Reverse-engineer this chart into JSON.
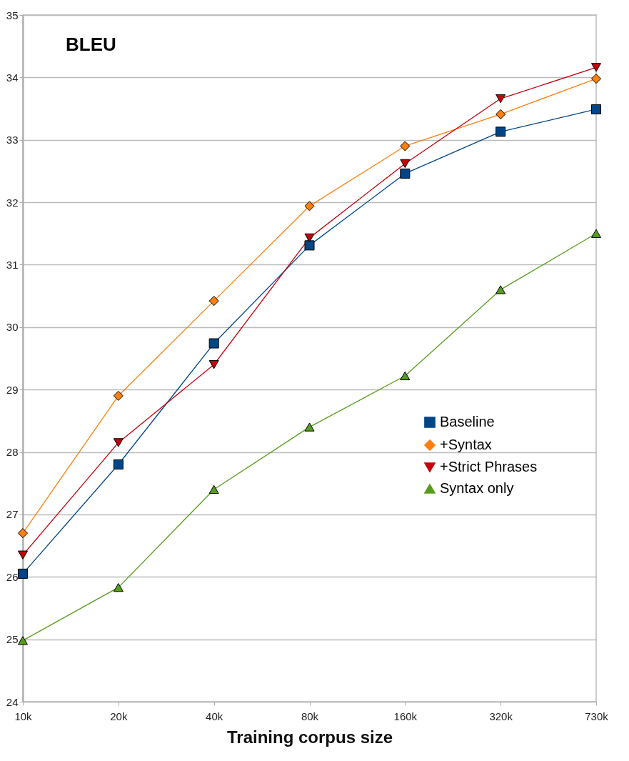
{
  "chart_data": {
    "type": "line",
    "title": "BLEU",
    "xlabel": "Training corpus size",
    "categories": [
      "10k",
      "20k",
      "40k",
      "80k",
      "160k",
      "320k",
      "730k"
    ],
    "series": [
      {
        "name": "Baseline",
        "color": "#004586",
        "marker": "square",
        "values": [
          26.05,
          27.8,
          29.74,
          31.31,
          32.46,
          33.13,
          33.49
        ]
      },
      {
        "name": "+Syntax",
        "color": "#ff7f0e",
        "marker": "diamond",
        "values": [
          26.7,
          28.9,
          30.42,
          31.94,
          32.9,
          33.41,
          33.98
        ]
      },
      {
        "name": "+Strict Phrases",
        "color": "#c5000b",
        "marker": "triangle-down",
        "values": [
          26.35,
          28.15,
          29.4,
          31.43,
          32.62,
          33.66,
          34.16
        ]
      },
      {
        "name": "Syntax only",
        "color": "#579d1c",
        "marker": "triangle",
        "values": [
          24.98,
          25.83,
          27.4,
          28.4,
          29.22,
          30.6,
          31.5
        ]
      }
    ],
    "ylim": [
      24,
      35
    ],
    "yticks": [
      24,
      25,
      26,
      27,
      28,
      29,
      30,
      31,
      32,
      33,
      34,
      35
    ],
    "grid": "y",
    "legend": "right"
  }
}
